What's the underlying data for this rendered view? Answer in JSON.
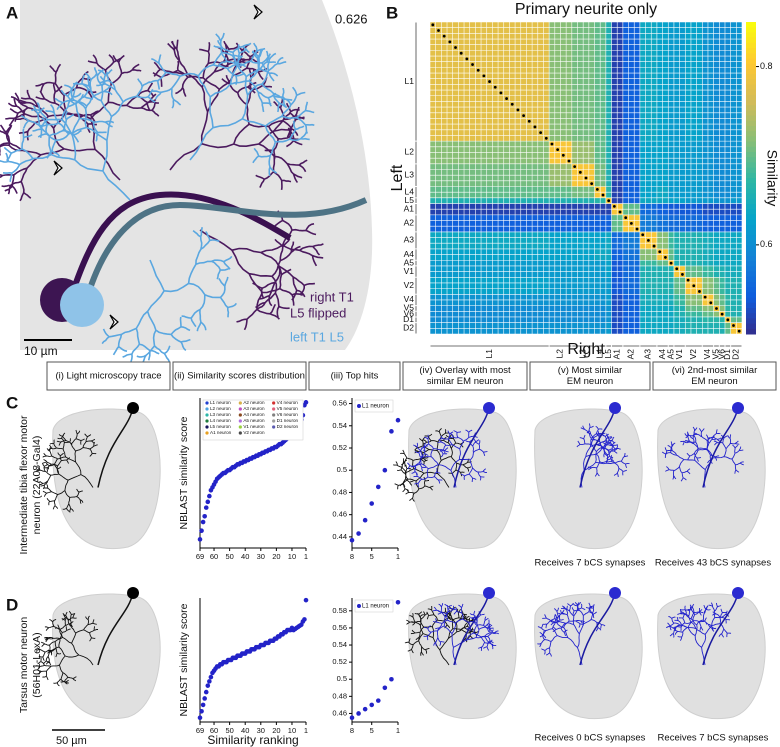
{
  "figure": {
    "panel_letters": [
      "A",
      "B",
      "C",
      "D"
    ],
    "panel_a": {
      "score": "0.626",
      "right_label": [
        "right T1",
        "L5 flipped"
      ],
      "left_label": "left T1 L5",
      "scale_bar": "10 µm"
    },
    "columns": [
      [
        "(i) Light microscopy trace"
      ],
      [
        "(ii) Similarity scores distribution"
      ],
      [
        "(iii) Top hits"
      ],
      [
        "(iv) Overlay with most",
        "similar EM neuron"
      ],
      [
        "(v) Most similar",
        "EM neuron"
      ],
      [
        "(vi) 2nd-most similar",
        "EM neuron"
      ]
    ],
    "rows": [
      {
        "label": [
          "Intermediate tibia flexor motor",
          "neuron (22A08-Gal4)"
        ],
        "captions": [
          "Receives 7 bCS synapses",
          "Receives 43 bCS synapses"
        ]
      },
      {
        "label": [
          "Tarsus motor neuron",
          "(56H01-LexA)"
        ],
        "captions": [
          "Receives 0 bCS synapses",
          "Receives 7 bCS synapses"
        ]
      }
    ],
    "scale_bar": "50 µm"
  },
  "chart_data": [
    {
      "type": "heatmap",
      "title": "Primary neurite only",
      "ylabel": "Left",
      "xlabel": "Right",
      "groups": [
        "L1",
        "L2",
        "L3",
        "L4",
        "L5",
        "A1",
        "A2",
        "A3",
        "A4",
        "A5",
        "V1",
        "V2",
        "V4",
        "V5",
        "V6",
        "D1",
        "D2"
      ],
      "group_sizes": [
        21,
        4,
        4,
        2,
        1,
        2,
        3,
        3,
        2,
        1,
        2,
        3,
        2,
        1,
        1,
        1,
        2
      ],
      "values": [
        [
          0.78,
          0.72,
          0.71,
          0.7,
          0.66,
          0.52,
          0.55,
          0.64,
          0.63,
          0.62,
          0.62,
          0.63,
          0.61,
          0.6,
          0.6,
          0.6,
          0.61
        ],
        [
          0.72,
          0.8,
          0.73,
          0.7,
          0.66,
          0.52,
          0.55,
          0.63,
          0.63,
          0.62,
          0.62,
          0.62,
          0.61,
          0.6,
          0.6,
          0.6,
          0.61
        ],
        [
          0.71,
          0.73,
          0.8,
          0.71,
          0.66,
          0.52,
          0.55,
          0.63,
          0.63,
          0.62,
          0.62,
          0.62,
          0.61,
          0.6,
          0.6,
          0.6,
          0.61
        ],
        [
          0.7,
          0.7,
          0.71,
          0.8,
          0.67,
          0.52,
          0.55,
          0.63,
          0.64,
          0.62,
          0.62,
          0.62,
          0.61,
          0.6,
          0.6,
          0.6,
          0.61
        ],
        [
          0.66,
          0.66,
          0.66,
          0.67,
          0.8,
          0.52,
          0.55,
          0.64,
          0.64,
          0.63,
          0.63,
          0.62,
          0.62,
          0.61,
          0.61,
          0.61,
          0.62
        ],
        [
          0.52,
          0.52,
          0.52,
          0.52,
          0.52,
          0.8,
          0.7,
          0.56,
          0.55,
          0.54,
          0.54,
          0.54,
          0.53,
          0.53,
          0.53,
          0.53,
          0.53
        ],
        [
          0.55,
          0.55,
          0.55,
          0.55,
          0.55,
          0.7,
          0.8,
          0.58,
          0.57,
          0.56,
          0.56,
          0.56,
          0.55,
          0.55,
          0.55,
          0.55,
          0.55
        ],
        [
          0.64,
          0.63,
          0.63,
          0.63,
          0.64,
          0.56,
          0.58,
          0.8,
          0.72,
          0.68,
          0.66,
          0.66,
          0.65,
          0.64,
          0.64,
          0.64,
          0.64
        ],
        [
          0.63,
          0.63,
          0.63,
          0.64,
          0.64,
          0.55,
          0.57,
          0.72,
          0.8,
          0.7,
          0.66,
          0.66,
          0.65,
          0.64,
          0.64,
          0.64,
          0.64
        ],
        [
          0.62,
          0.62,
          0.62,
          0.62,
          0.63,
          0.54,
          0.56,
          0.68,
          0.7,
          0.8,
          0.66,
          0.66,
          0.65,
          0.64,
          0.64,
          0.64,
          0.64
        ],
        [
          0.62,
          0.62,
          0.62,
          0.62,
          0.63,
          0.54,
          0.56,
          0.66,
          0.66,
          0.66,
          0.8,
          0.7,
          0.68,
          0.66,
          0.66,
          0.65,
          0.65
        ],
        [
          0.63,
          0.62,
          0.62,
          0.62,
          0.62,
          0.54,
          0.56,
          0.66,
          0.66,
          0.66,
          0.7,
          0.8,
          0.72,
          0.7,
          0.68,
          0.66,
          0.66
        ],
        [
          0.61,
          0.61,
          0.61,
          0.61,
          0.62,
          0.53,
          0.55,
          0.65,
          0.65,
          0.65,
          0.68,
          0.72,
          0.8,
          0.72,
          0.7,
          0.67,
          0.66
        ],
        [
          0.6,
          0.6,
          0.6,
          0.6,
          0.61,
          0.53,
          0.55,
          0.64,
          0.64,
          0.64,
          0.66,
          0.7,
          0.72,
          0.8,
          0.72,
          0.67,
          0.66
        ],
        [
          0.6,
          0.6,
          0.6,
          0.6,
          0.61,
          0.53,
          0.55,
          0.64,
          0.64,
          0.64,
          0.66,
          0.68,
          0.7,
          0.72,
          0.8,
          0.67,
          0.66
        ],
        [
          0.6,
          0.6,
          0.6,
          0.6,
          0.61,
          0.53,
          0.55,
          0.64,
          0.64,
          0.64,
          0.65,
          0.66,
          0.67,
          0.67,
          0.67,
          0.8,
          0.7
        ],
        [
          0.61,
          0.61,
          0.61,
          0.61,
          0.62,
          0.53,
          0.55,
          0.64,
          0.64,
          0.64,
          0.65,
          0.66,
          0.66,
          0.66,
          0.66,
          0.7,
          0.8
        ]
      ],
      "clim": [
        0.5,
        0.85
      ],
      "colorbar_label": "Similarity",
      "colorbar_ticks": [
        0.6,
        0.8
      ]
    },
    {
      "type": "scatter",
      "ylabel": "NBLAST similarity score",
      "color": "#2323c8",
      "x": [
        69,
        68,
        67,
        66,
        65,
        64,
        63,
        62,
        61,
        60,
        59,
        58,
        57,
        56,
        55,
        54,
        53,
        52,
        51,
        50,
        49,
        48,
        47,
        46,
        45,
        44,
        43,
        42,
        41,
        40,
        39,
        38,
        37,
        36,
        35,
        34,
        33,
        32,
        31,
        30,
        29,
        28,
        27,
        26,
        25,
        24,
        23,
        22,
        21,
        20,
        19,
        18,
        17,
        16,
        15,
        14,
        13,
        12,
        11,
        10,
        9,
        8,
        7,
        6,
        5,
        4,
        3,
        2,
        1
      ],
      "values": [
        0.07,
        0.1,
        0.13,
        0.15,
        0.18,
        0.2,
        0.22,
        0.24,
        0.25,
        0.26,
        0.27,
        0.28,
        0.285,
        0.29,
        0.295,
        0.3,
        0.3,
        0.305,
        0.31,
        0.31,
        0.315,
        0.32,
        0.32,
        0.325,
        0.33,
        0.33,
        0.335,
        0.335,
        0.34,
        0.34,
        0.345,
        0.345,
        0.35,
        0.35,
        0.355,
        0.355,
        0.36,
        0.36,
        0.365,
        0.365,
        0.37,
        0.37,
        0.375,
        0.375,
        0.38,
        0.38,
        0.385,
        0.385,
        0.39,
        0.39,
        0.395,
        0.4,
        0.4,
        0.405,
        0.41,
        0.415,
        0.42,
        0.425,
        0.43,
        0.432,
        0.435,
        0.437,
        0.443,
        0.455,
        0.47,
        0.485,
        0.5,
        0.535,
        0.545
      ],
      "xlim": [
        69,
        1
      ],
      "xticks": [
        69,
        60,
        50,
        40,
        30,
        20,
        10,
        1
      ],
      "ylim": [
        0.04,
        0.56
      ],
      "legend": [
        {
          "name": "L1 neuron",
          "color": "#1f3fd0"
        },
        {
          "name": "L2 neuron",
          "color": "#4fa3e0"
        },
        {
          "name": "L3 neuron",
          "color": "#2cb5a8"
        },
        {
          "name": "L4 neuron",
          "color": "#1b7a3a"
        },
        {
          "name": "L5 neuron",
          "color": "#14145a"
        },
        {
          "name": "A1 neuron",
          "color": "#e8a020"
        },
        {
          "name": "A2 neuron",
          "color": "#d8b048"
        },
        {
          "name": "A3 neuron",
          "color": "#c04fc0"
        },
        {
          "name": "A4 neuron",
          "color": "#8a4a20"
        },
        {
          "name": "A5 neuron",
          "color": "#b06ee0"
        },
        {
          "name": "V1 neuron",
          "color": "#9ad040"
        },
        {
          "name": "V2 neuron",
          "color": "#4a4a4a"
        },
        {
          "name": "V4 neuron",
          "color": "#d23030"
        },
        {
          "name": "V5 neuron",
          "color": "#e0607a"
        },
        {
          "name": "V6 neuron",
          "color": "#808080"
        },
        {
          "name": "D1 neuron",
          "color": "#a0a0a0"
        },
        {
          "name": "D2 neuron",
          "color": "#5a5ab0"
        }
      ]
    },
    {
      "type": "scatter",
      "color": "#2323c8",
      "x": [
        8,
        7,
        6,
        5,
        4,
        3,
        2,
        1
      ],
      "values": [
        0.437,
        0.443,
        0.455,
        0.47,
        0.485,
        0.5,
        0.535,
        0.545
      ],
      "xlim": [
        8,
        1
      ],
      "xticks": [
        8,
        5,
        1
      ],
      "ylim": [
        0.43,
        0.565
      ],
      "yticks": [
        0.44,
        0.46,
        0.48,
        0.5,
        0.52,
        0.54,
        0.56
      ],
      "legend": [
        {
          "name": "L1 neuron",
          "color": "#2323c8"
        }
      ]
    },
    {
      "type": "scatter",
      "ylabel": "NBLAST similarity score",
      "xlabel": "Similarity ranking",
      "color": "#2323c8",
      "x": [
        69,
        68,
        67,
        66,
        65,
        64,
        63,
        62,
        61,
        60,
        59,
        58,
        57,
        56,
        55,
        54,
        53,
        52,
        51,
        50,
        49,
        48,
        47,
        46,
        45,
        44,
        43,
        42,
        41,
        40,
        39,
        38,
        37,
        36,
        35,
        34,
        33,
        32,
        31,
        30,
        29,
        28,
        27,
        26,
        25,
        24,
        23,
        22,
        21,
        20,
        19,
        18,
        17,
        16,
        15,
        14,
        13,
        12,
        11,
        10,
        9,
        8,
        7,
        6,
        5,
        4,
        3,
        2,
        1
      ],
      "values": [
        0.04,
        0.07,
        0.1,
        0.13,
        0.16,
        0.19,
        0.21,
        0.23,
        0.25,
        0.26,
        0.27,
        0.28,
        0.28,
        0.29,
        0.29,
        0.3,
        0.3,
        0.3,
        0.31,
        0.31,
        0.31,
        0.32,
        0.32,
        0.32,
        0.33,
        0.33,
        0.33,
        0.34,
        0.34,
        0.34,
        0.35,
        0.35,
        0.35,
        0.36,
        0.36,
        0.36,
        0.37,
        0.37,
        0.37,
        0.38,
        0.38,
        0.38,
        0.39,
        0.39,
        0.39,
        0.4,
        0.4,
        0.4,
        0.41,
        0.41,
        0.42,
        0.42,
        0.43,
        0.43,
        0.44,
        0.44,
        0.45,
        0.45,
        0.45,
        0.46,
        0.45,
        0.455,
        0.46,
        0.465,
        0.47,
        0.475,
        0.49,
        0.5,
        0.59
      ],
      "xlim": [
        69,
        1
      ],
      "xticks": [
        69,
        60,
        50,
        40,
        30,
        20,
        10,
        1
      ],
      "ylim": [
        0.02,
        0.6
      ]
    },
    {
      "type": "scatter",
      "color": "#2323c8",
      "x": [
        8,
        7,
        6,
        5,
        4,
        3,
        2,
        1
      ],
      "values": [
        0.455,
        0.46,
        0.465,
        0.47,
        0.475,
        0.49,
        0.5,
        0.59
      ],
      "xlim": [
        8,
        1
      ],
      "xticks": [
        8,
        5,
        1
      ],
      "ylim": [
        0.45,
        0.595
      ],
      "yticks": [
        0.46,
        0.48,
        0.5,
        0.52,
        0.54,
        0.56,
        0.58
      ],
      "legend": [
        {
          "name": "L1 neuron",
          "color": "#2323c8"
        }
      ]
    }
  ]
}
